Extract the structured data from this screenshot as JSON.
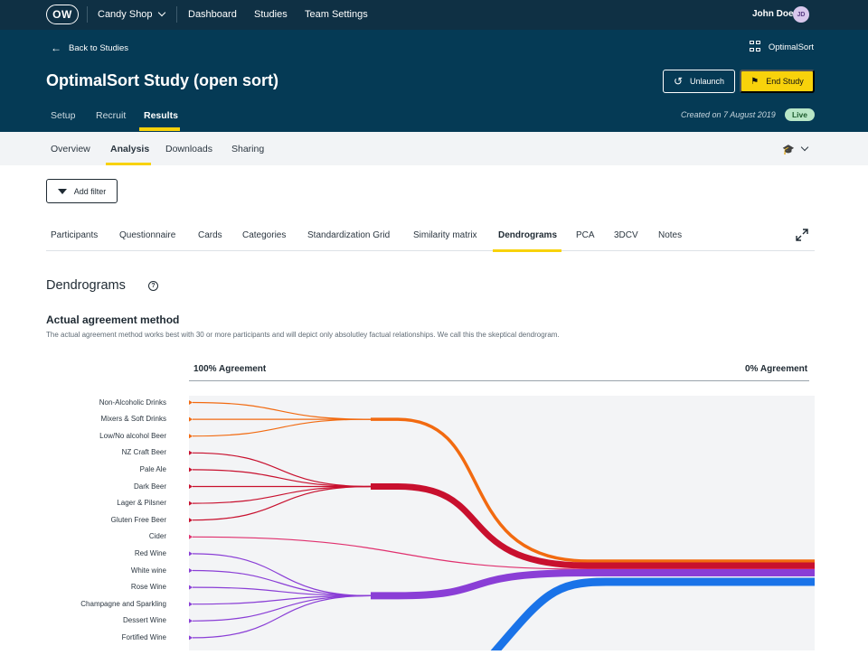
{
  "topnav": {
    "logo": "OW",
    "workspace": "Candy Shop",
    "links": [
      "Dashboard",
      "Studies",
      "Team Settings"
    ],
    "user_name": "John Doe",
    "user_initials": "JD"
  },
  "header": {
    "back_label": "Back to Studies",
    "product_name": "OptimalSort",
    "study_title": "OptimalSort Study (open sort)",
    "unlaunch_label": "Unlaunch",
    "end_label": "End Study",
    "tabs": [
      "Setup",
      "Recruit",
      "Results"
    ],
    "active_tab": "Results",
    "created": "Created on 7 August 2019",
    "status": "Live"
  },
  "subnav": {
    "tabs": [
      "Overview",
      "Analysis",
      "Downloads",
      "Sharing"
    ],
    "active_tab": "Analysis"
  },
  "filter": {
    "label": "Add filter"
  },
  "analysis_tabs": {
    "items": [
      "Participants",
      "Questionnaire",
      "Cards",
      "Categories",
      "Standardization Grid",
      "Similarity matrix",
      "Dendrograms",
      "PCA",
      "3DCV",
      "Notes"
    ],
    "active": "Dendrograms"
  },
  "section": {
    "title": "Dendrograms",
    "method_title": "Actual agreement method",
    "method_desc": "The actual agreement method works best with 30 or more participants and will depict only absolutley factual relationships. We call this the skeptical dendrogram.",
    "agree_left": "100% Agreement",
    "agree_right": "0% Agreement"
  },
  "chart_data": {
    "type": "dendrogram",
    "cards": [
      "Non-Alcoholic Drinks",
      "Mixers & Soft Drinks",
      "Low/No alcohol Beer",
      "NZ Craft Beer",
      "Pale Ale",
      "Dark Beer",
      "Lager & Pilsner",
      "Gluten Free Beer",
      "Cider",
      "Red Wine",
      "White wine",
      "Rose Wine",
      "Champagne and Sparkling",
      "Dessert Wine",
      "Fortified Wine"
    ],
    "clusters": [
      {
        "members": [
          0,
          1,
          2
        ],
        "color": "#f26a10"
      },
      {
        "members": [
          3,
          4,
          5,
          6,
          7
        ],
        "color": "#c8102e"
      },
      {
        "members": [
          8
        ],
        "color": "#e0306e"
      },
      {
        "members": [
          9,
          10,
          11,
          12,
          13,
          14
        ],
        "color": "#8a3ed6"
      },
      {
        "members": [],
        "color": "#1a73e8"
      }
    ],
    "colors": {
      "background": "#f3f4f6"
    }
  }
}
